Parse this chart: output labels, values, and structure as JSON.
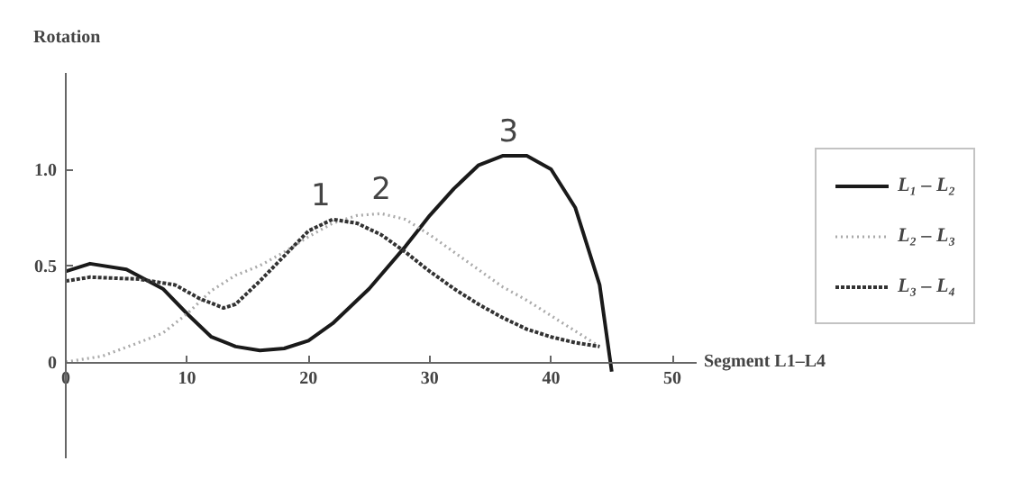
{
  "chart_data": {
    "type": "line",
    "xlabel": "Segment L1–L4",
    "ylabel": "Rotation",
    "xlim": [
      0,
      52
    ],
    "ylim": [
      -0.5,
      1.5
    ],
    "xticks": [
      0,
      10,
      20,
      30,
      40,
      50
    ],
    "yticks": [
      0,
      0.5,
      {
        "value": 1.0,
        "label": "1.0"
      }
    ],
    "grid": false,
    "legend": "right",
    "marker": "none",
    "series": [
      {
        "name": "L₁ – L₂",
        "color": "#1a1a1a",
        "line_style": "solid",
        "x": [
          0,
          2,
          5,
          8,
          10,
          12,
          14,
          16,
          18,
          20,
          22,
          25,
          28,
          30,
          32,
          34,
          36,
          38,
          40,
          42,
          44,
          45
        ],
        "values": [
          0.47,
          0.51,
          0.48,
          0.38,
          0.25,
          0.13,
          0.08,
          0.06,
          0.07,
          0.11,
          0.2,
          0.38,
          0.6,
          0.76,
          0.9,
          1.02,
          1.07,
          1.07,
          1.0,
          0.8,
          0.4,
          -0.05
        ]
      },
      {
        "name": "L₂ – L₃",
        "color": "#aaaaaa",
        "line_style": "dotted",
        "x": [
          0,
          3,
          6,
          8,
          10,
          12,
          14,
          16,
          18,
          20,
          22,
          24,
          26,
          28,
          30,
          32,
          34,
          36,
          38,
          40,
          42,
          44
        ],
        "values": [
          0.0,
          0.03,
          0.1,
          0.15,
          0.25,
          0.37,
          0.45,
          0.5,
          0.57,
          0.65,
          0.72,
          0.76,
          0.77,
          0.74,
          0.66,
          0.57,
          0.48,
          0.39,
          0.32,
          0.24,
          0.16,
          0.08
        ]
      },
      {
        "name": "L₃ – L₄",
        "color": "#333333",
        "line_style": "dashed",
        "x": [
          0,
          2,
          6,
          9,
          11,
          13,
          14,
          16,
          18,
          20,
          22,
          24,
          26,
          28,
          30,
          32,
          34,
          36,
          38,
          40,
          42,
          44
        ],
        "values": [
          0.42,
          0.44,
          0.43,
          0.4,
          0.33,
          0.28,
          0.3,
          0.42,
          0.55,
          0.68,
          0.74,
          0.72,
          0.66,
          0.57,
          0.47,
          0.38,
          0.3,
          0.23,
          0.17,
          0.13,
          0.1,
          0.08
        ]
      }
    ],
    "annotations": [
      {
        "text": "1",
        "x": 21,
        "y": 0.74
      },
      {
        "text": "2",
        "x": 26,
        "y": 0.77
      },
      {
        "text": "3",
        "x": 36.5,
        "y": 1.07
      }
    ]
  }
}
